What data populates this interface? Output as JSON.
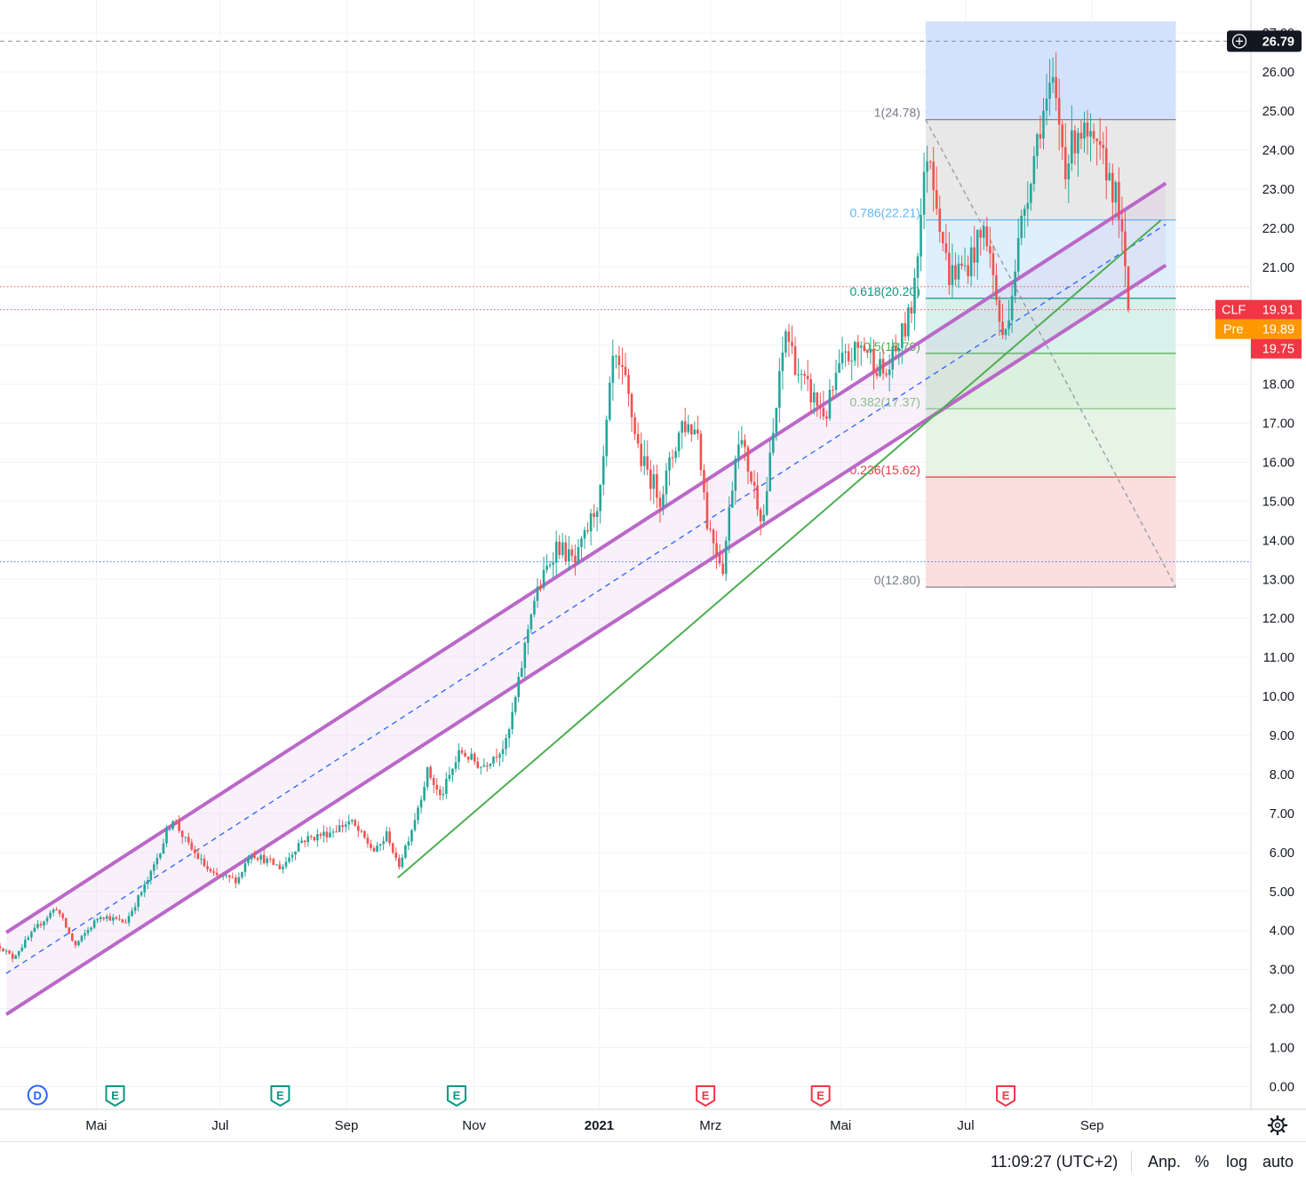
{
  "chart_data": {
    "type": "candlestick",
    "symbol": "CLF",
    "last_price": 19.91,
    "premarket_price": 19.89,
    "extra_price_label": 19.75,
    "crosshair_price": 26.79,
    "ylim": [
      0,
      27
    ],
    "y_ticks": [
      0,
      1,
      2,
      3,
      4,
      5,
      6,
      7,
      8,
      9,
      10,
      11,
      12,
      13,
      14,
      15,
      16,
      17,
      18,
      19,
      20,
      21,
      22,
      23,
      24,
      25,
      26,
      27
    ],
    "y_tick_labels": [
      "0.00",
      "1.00",
      "2.00",
      "3.00",
      "4.00",
      "5.00",
      "6.00",
      "7.00",
      "8.00",
      "9.00",
      "10.00",
      "11.00",
      "12.00",
      "13.00",
      "14.00",
      "15.00",
      "16.00",
      "17.00",
      "18.00",
      "19.00",
      "20.00",
      "21.00",
      "22.00",
      "23.00",
      "24.00",
      "25.00",
      "26.00",
      "27.00"
    ],
    "x_tick_labels": [
      {
        "label": "Mai",
        "t": 0.077
      },
      {
        "label": "Jul",
        "t": 0.176
      },
      {
        "label": "Sep",
        "t": 0.277
      },
      {
        "label": "Nov",
        "t": 0.379
      },
      {
        "label": "2021",
        "t": 0.479,
        "bold": true
      },
      {
        "label": "Mrz",
        "t": 0.568
      },
      {
        "label": "Mai",
        "t": 0.672
      },
      {
        "label": "Jul",
        "t": 0.772
      },
      {
        "label": "Sep",
        "t": 0.873
      }
    ],
    "price_path": [
      [
        0.0,
        3.6
      ],
      [
        0.01,
        3.3
      ],
      [
        0.03,
        4.1
      ],
      [
        0.045,
        4.6
      ],
      [
        0.06,
        3.6
      ],
      [
        0.08,
        4.4
      ],
      [
        0.1,
        4.2
      ],
      [
        0.12,
        5.4
      ],
      [
        0.138,
        6.9
      ],
      [
        0.15,
        6.2
      ],
      [
        0.17,
        5.4
      ],
      [
        0.19,
        5.3
      ],
      [
        0.2,
        6.0
      ],
      [
        0.225,
        5.6
      ],
      [
        0.24,
        6.3
      ],
      [
        0.262,
        6.5
      ],
      [
        0.28,
        6.8
      ],
      [
        0.3,
        6.0
      ],
      [
        0.31,
        6.5
      ],
      [
        0.318,
        5.6
      ],
      [
        0.33,
        6.7
      ],
      [
        0.342,
        8.1
      ],
      [
        0.352,
        7.4
      ],
      [
        0.368,
        8.6
      ],
      [
        0.385,
        8.2
      ],
      [
        0.405,
        8.8
      ],
      [
        0.415,
        10.4
      ],
      [
        0.425,
        12.3
      ],
      [
        0.445,
        13.9
      ],
      [
        0.46,
        13.4
      ],
      [
        0.48,
        15.2
      ],
      [
        0.49,
        18.6
      ],
      [
        0.5,
        18.0
      ],
      [
        0.512,
        16.1
      ],
      [
        0.528,
        15.1
      ],
      [
        0.545,
        17.0
      ],
      [
        0.558,
        16.8
      ],
      [
        0.565,
        14.5
      ],
      [
        0.578,
        13.3
      ],
      [
        0.59,
        16.8
      ],
      [
        0.61,
        14.5
      ],
      [
        0.628,
        19.4
      ],
      [
        0.64,
        18.1
      ],
      [
        0.66,
        17.2
      ],
      [
        0.672,
        18.5
      ],
      [
        0.69,
        19.0
      ],
      [
        0.708,
        18.2
      ],
      [
        0.728,
        19.8
      ],
      [
        0.742,
        24.2
      ],
      [
        0.758,
        20.8
      ],
      [
        0.772,
        21.0
      ],
      [
        0.788,
        22.0
      ],
      [
        0.802,
        19.0
      ],
      [
        0.818,
        22.4
      ],
      [
        0.832,
        24.8
      ],
      [
        0.842,
        25.6
      ],
      [
        0.852,
        23.6
      ],
      [
        0.862,
        24.6
      ],
      [
        0.872,
        24.1
      ],
      [
        0.884,
        23.6
      ],
      [
        0.894,
        22.6
      ],
      [
        0.902,
        19.91
      ]
    ],
    "channel": {
      "upper": [
        [
          0.005,
          3.95
        ],
        [
          0.932,
          23.15
        ]
      ],
      "lower": [
        [
          0.005,
          1.85
        ],
        [
          0.932,
          21.05
        ]
      ],
      "median": [
        [
          0.005,
          2.9
        ],
        [
          0.932,
          22.1
        ]
      ]
    },
    "trendline": [
      [
        0.318,
        5.35
      ],
      [
        0.928,
        22.2
      ]
    ],
    "fibonacci": {
      "levels": [
        {
          "ratio": "1",
          "value": 24.78,
          "label": "1(24.78)",
          "color": "#787b86"
        },
        {
          "ratio": "0.786",
          "value": 22.21,
          "label": "0.786(22.21)",
          "color": "#64b5f6"
        },
        {
          "ratio": "0.618",
          "value": 20.2,
          "label": "0.618(20.20)",
          "color": "#089981"
        },
        {
          "ratio": "0.5",
          "value": 18.79,
          "label": "0.5(18.79)",
          "color": "#4caf50"
        },
        {
          "ratio": "0.382",
          "value": 17.37,
          "label": "0.382(17.37)",
          "color": "#81c784"
        },
        {
          "ratio": "0.236",
          "value": 15.62,
          "label": "0.236(15.62)",
          "color": "#f23645"
        },
        {
          "ratio": "0",
          "value": 12.8,
          "label": "0(12.80)",
          "color": "#787b86"
        }
      ],
      "t_start": 0.74,
      "t_end": 0.94,
      "top_extension": 27.3
    },
    "horizontal_lines": [
      {
        "value": 26.79,
        "style": "dashed",
        "color": "#787b86"
      },
      {
        "value": 20.5,
        "style": "dotted",
        "color": "#f23645"
      },
      {
        "value": 19.91,
        "style": "dotted",
        "color": "#f23645"
      },
      {
        "value": 13.45,
        "style": "dotted",
        "color": "#2962ff"
      }
    ],
    "event_markers": [
      {
        "type": "D",
        "t": 0.03,
        "color": "#2962ff"
      },
      {
        "type": "E",
        "t": 0.092,
        "color": "#089981"
      },
      {
        "type": "E",
        "t": 0.224,
        "color": "#089981"
      },
      {
        "type": "E",
        "t": 0.365,
        "color": "#089981"
      },
      {
        "type": "E",
        "t": 0.564,
        "color": "#f23645"
      },
      {
        "type": "E",
        "t": 0.656,
        "color": "#f23645"
      },
      {
        "type": "E",
        "t": 0.804,
        "color": "#f23645"
      }
    ],
    "price_labels": {
      "symbol_label": "CLF",
      "symbol_value": "19.91",
      "pre_label": "Pre",
      "pre_value": "19.89",
      "extra_value": "19.75",
      "crosshair_value": "26.79"
    }
  },
  "toolbar": {
    "time": "11:09:27 (UTC+2)",
    "adjust": "Anp.",
    "percent": "%",
    "log": "log",
    "auto": "auto"
  },
  "colors": {
    "up": "#26a69a",
    "down": "#ef5350",
    "channel": "#ba68c8",
    "trend": "#4caf50",
    "median": "#2962ff"
  }
}
